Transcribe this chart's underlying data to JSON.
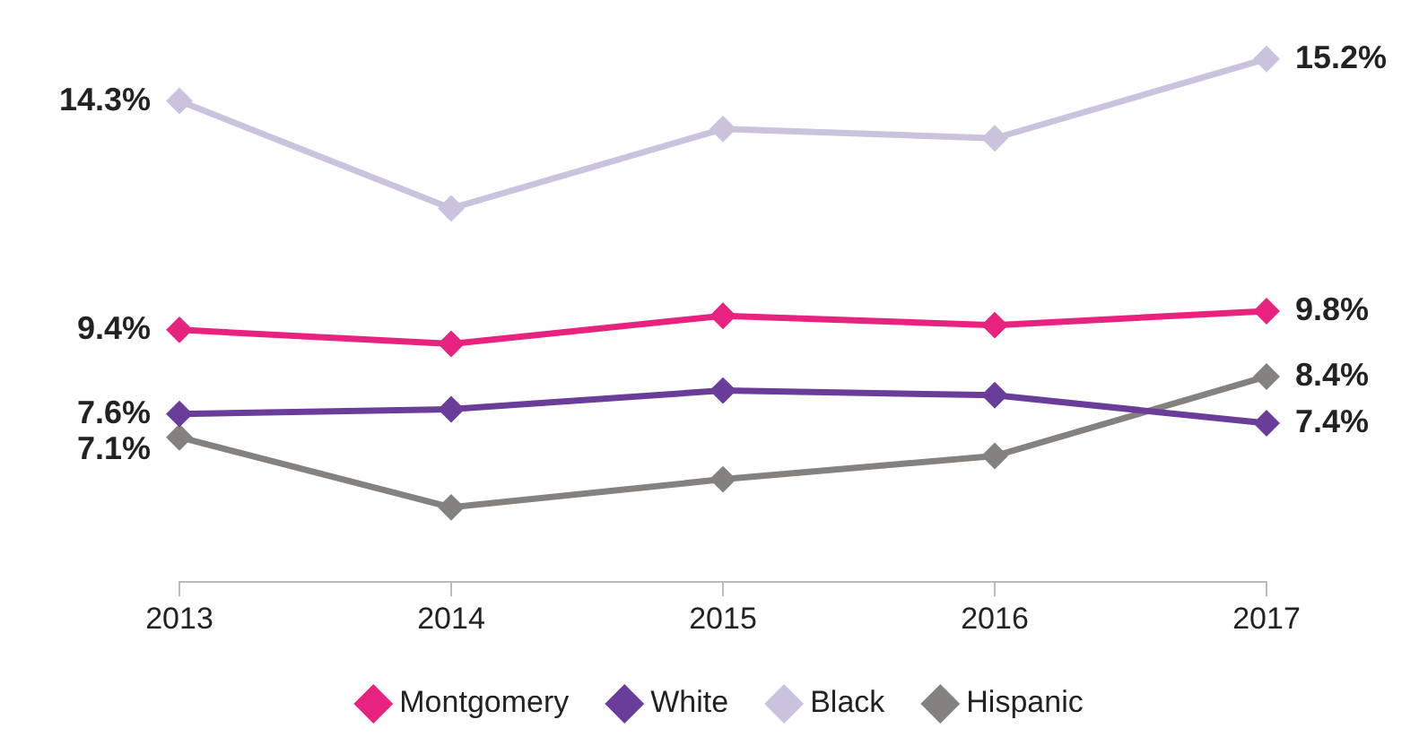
{
  "chart_data": {
    "type": "line",
    "categories": [
      "2013",
      "2014",
      "2015",
      "2016",
      "2017"
    ],
    "series": [
      {
        "name": "Montgomery",
        "color": "#e8237f",
        "values": [
          9.4,
          9.1,
          9.7,
          9.5,
          9.8
        ],
        "value_labels": [
          "9.4%",
          null,
          null,
          null,
          "9.8%"
        ]
      },
      {
        "name": "White",
        "color": "#6a3d9a",
        "values": [
          7.6,
          7.7,
          8.1,
          8.0,
          7.4
        ],
        "value_labels": [
          "7.6%",
          null,
          null,
          null,
          "7.4%"
        ]
      },
      {
        "name": "Black",
        "color": "#cbc2de",
        "values": [
          14.3,
          12.0,
          13.7,
          13.5,
          15.2
        ],
        "value_labels": [
          "14.3%",
          null,
          null,
          null,
          "15.2%"
        ]
      },
      {
        "name": "Hispanic",
        "color": "#85817e",
        "values": [
          7.1,
          5.6,
          6.2,
          6.7,
          8.4
        ],
        "value_labels": [
          "7.1%",
          null,
          null,
          null,
          "8.4%"
        ]
      }
    ],
    "tick_labels": "x",
    "grid": false,
    "legend": "bottom",
    "marker": "diamond",
    "line_style": "solid"
  }
}
